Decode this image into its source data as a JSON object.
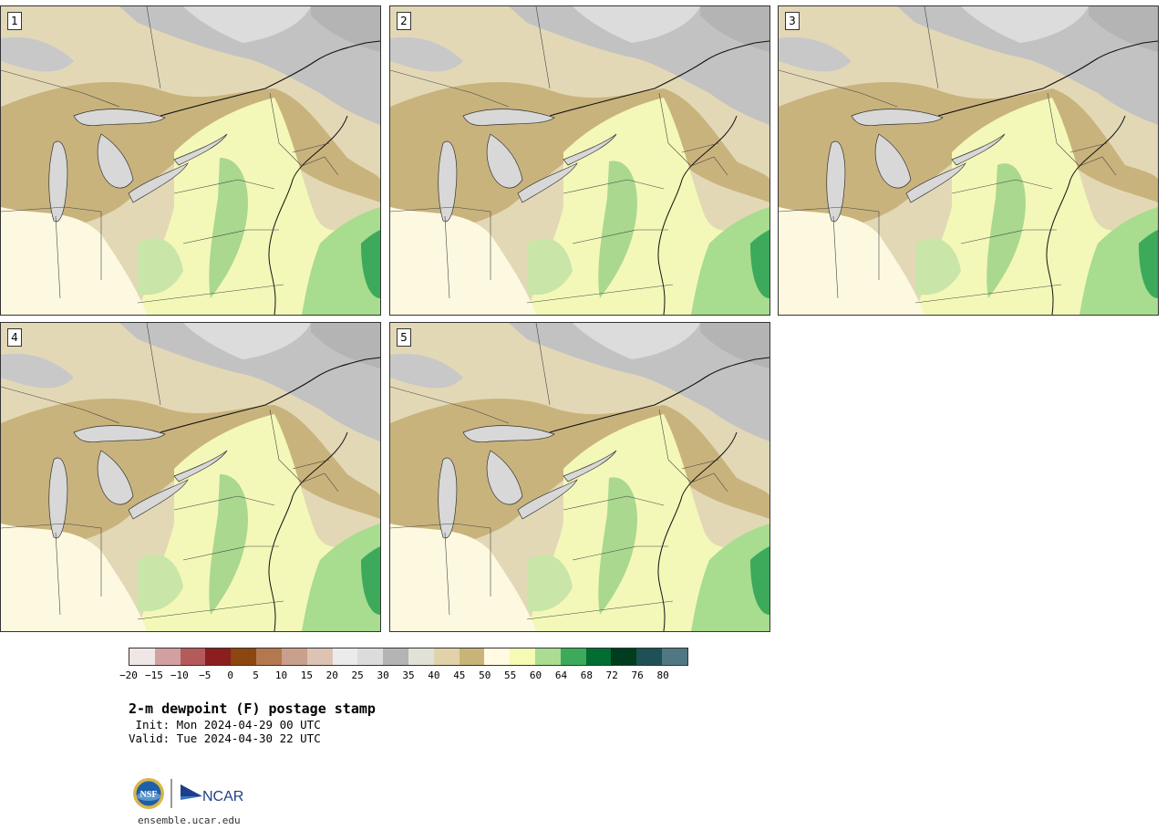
{
  "panels": [
    {
      "label": "1"
    },
    {
      "label": "2"
    },
    {
      "label": "3"
    },
    {
      "label": "4"
    },
    {
      "label": "5"
    }
  ],
  "colorbar": {
    "colors": [
      "#f0e6e6",
      "#d2a0a0",
      "#b45a5a",
      "#8c1e1e",
      "#8c460f",
      "#b47850",
      "#c8a08c",
      "#dcc3b4",
      "#ebebeb",
      "#dcdcdc",
      "#b4b4b4",
      "#e1e1d7",
      "#e1d2aa",
      "#c8b478",
      "#fffae1",
      "#f5fab4",
      "#aadc91",
      "#3caa5a",
      "#006e32",
      "#003c1e",
      "#1e5055",
      "#507882"
    ],
    "tick_labels": [
      "−20",
      "−15",
      "−10",
      "−5",
      "0",
      "5",
      "10",
      "15",
      "20",
      "25",
      "30",
      "35",
      "40",
      "45",
      "50",
      "55",
      "60",
      "64",
      "68",
      "72",
      "76",
      "80"
    ]
  },
  "title": "2-m dewpoint (F) postage stamp",
  "init": " Init: Mon 2024-04-29 00 UTC",
  "valid": "Valid: Tue 2024-04-30 22 UTC",
  "logo": {
    "nsf": "NSF",
    "ncar": "NCAR"
  },
  "website": "ensemble.ucar.edu"
}
